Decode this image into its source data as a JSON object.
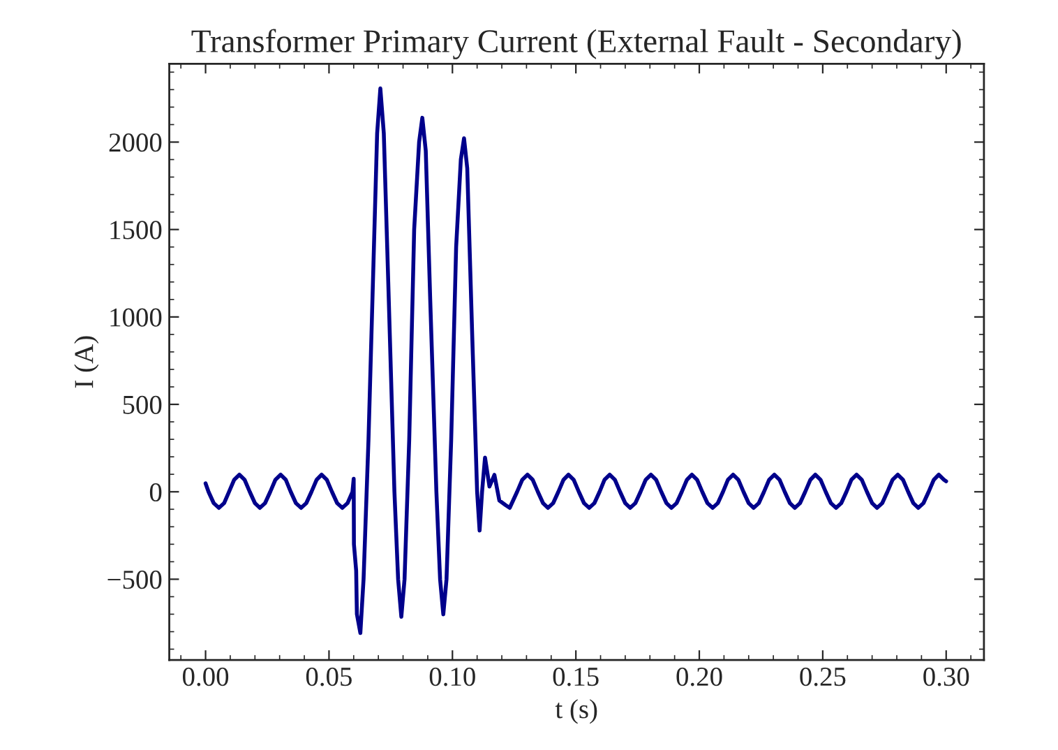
{
  "chart_data": {
    "type": "line",
    "title": "Transformer Primary Current (External Fault - Secondary)",
    "xlabel": "t (s)",
    "ylabel": "I (A)",
    "xlim": [
      -0.0147,
      0.3153
    ],
    "ylim": [
      -962,
      2448
    ],
    "xticks": [
      {
        "value": 0,
        "label": "0.00"
      },
      {
        "value": 0.05,
        "label": "0.05"
      },
      {
        "value": 0.1,
        "label": "0.10"
      },
      {
        "value": 0.15,
        "label": "0.15"
      },
      {
        "value": 0.2,
        "label": "0.20"
      },
      {
        "value": 0.25,
        "label": "0.25"
      },
      {
        "value": 0.3,
        "label": "0.30"
      }
    ],
    "yticks": [
      {
        "value": -500,
        "label": "−500"
      },
      0,
      500,
      1000,
      1500,
      2000
    ],
    "grid": false,
    "legend": false,
    "marker": "none",
    "line_style": "solid",
    "series": [
      {
        "color": "#00008b",
        "x": [
          0.0,
          0.0012,
          0.0033,
          0.0054,
          0.0075,
          0.0095,
          0.0116,
          0.0137,
          0.0158,
          0.0179,
          0.02,
          0.022,
          0.0241,
          0.0262,
          0.0283,
          0.0304,
          0.0325,
          0.0345,
          0.0366,
          0.0387,
          0.0408,
          0.0429,
          0.045,
          0.047,
          0.0491,
          0.0512,
          0.0533,
          0.0554,
          0.0575,
          0.0595,
          0.06,
          0.0601,
          0.061,
          0.0613,
          0.0627,
          0.064,
          0.066,
          0.068,
          0.0695,
          0.0708,
          0.0722,
          0.074,
          0.0765,
          0.078,
          0.0793,
          0.0806,
          0.0825,
          0.0845,
          0.0865,
          0.0878,
          0.0892,
          0.091,
          0.0935,
          0.095,
          0.0963,
          0.0976,
          0.0995,
          0.1015,
          0.1034,
          0.1047,
          0.106,
          0.108,
          0.11,
          0.111,
          0.112,
          0.1132,
          0.115,
          0.117,
          0.119,
          0.1215,
          0.1232,
          0.1262,
          0.1283,
          0.1304,
          0.1325,
          0.1346,
          0.1367,
          0.1387,
          0.1408,
          0.1429,
          0.145,
          0.147,
          0.1491,
          0.1512,
          0.1533,
          0.1554,
          0.1575,
          0.1596,
          0.1616,
          0.1637,
          0.1658,
          0.1679,
          0.17,
          0.172,
          0.1741,
          0.1762,
          0.1783,
          0.1804,
          0.1825,
          0.1846,
          0.1867,
          0.1887,
          0.1908,
          0.1929,
          0.195,
          0.197,
          0.1991,
          0.2012,
          0.2033,
          0.2054,
          0.2075,
          0.2096,
          0.2116,
          0.2137,
          0.2158,
          0.2179,
          0.22,
          0.222,
          0.2241,
          0.2262,
          0.2283,
          0.2304,
          0.2325,
          0.2346,
          0.2367,
          0.2387,
          0.2408,
          0.2429,
          0.245,
          0.247,
          0.2491,
          0.2512,
          0.2533,
          0.2554,
          0.2575,
          0.2596,
          0.2616,
          0.2637,
          0.2658,
          0.2679,
          0.27,
          0.272,
          0.2741,
          0.2762,
          0.2783,
          0.2804,
          0.2825,
          0.2846,
          0.2867,
          0.2887,
          0.2908,
          0.2929,
          0.295,
          0.297,
          0.2991,
          0.3
        ],
        "values": [
          48,
          0,
          -65,
          -92,
          -65,
          0,
          69,
          98,
          69,
          0,
          -65,
          -92,
          -65,
          0,
          69,
          98,
          69,
          0,
          -65,
          -92,
          -65,
          0,
          69,
          98,
          69,
          0,
          -65,
          -92,
          -65,
          0,
          75,
          -300,
          -450,
          -700,
          -808,
          -500,
          300,
          1300,
          2050,
          2307,
          2050,
          1200,
          0,
          -500,
          -715,
          -500,
          300,
          1500,
          2000,
          2139,
          1950,
          1100,
          0,
          -500,
          -701,
          -500,
          300,
          1400,
          1900,
          2022,
          1850,
          900,
          0,
          -222,
          0,
          196,
          30,
          97,
          -50,
          -76,
          -92,
          0,
          69,
          98,
          69,
          0,
          -65,
          -92,
          -65,
          0,
          69,
          98,
          69,
          0,
          -65,
          -92,
          -65,
          0,
          69,
          98,
          69,
          0,
          -65,
          -92,
          -65,
          0,
          69,
          98,
          69,
          0,
          -65,
          -92,
          -65,
          0,
          69,
          98,
          69,
          0,
          -65,
          -92,
          -65,
          0,
          69,
          98,
          69,
          0,
          -65,
          -92,
          -65,
          0,
          69,
          98,
          69,
          0,
          -65,
          -92,
          -65,
          0,
          69,
          98,
          69,
          0,
          -65,
          -92,
          -65,
          0,
          69,
          98,
          69,
          0,
          -65,
          -92,
          -65,
          0,
          69,
          98,
          69,
          0,
          -65,
          -92,
          -65,
          0,
          69,
          98,
          69,
          60
        ]
      }
    ]
  }
}
